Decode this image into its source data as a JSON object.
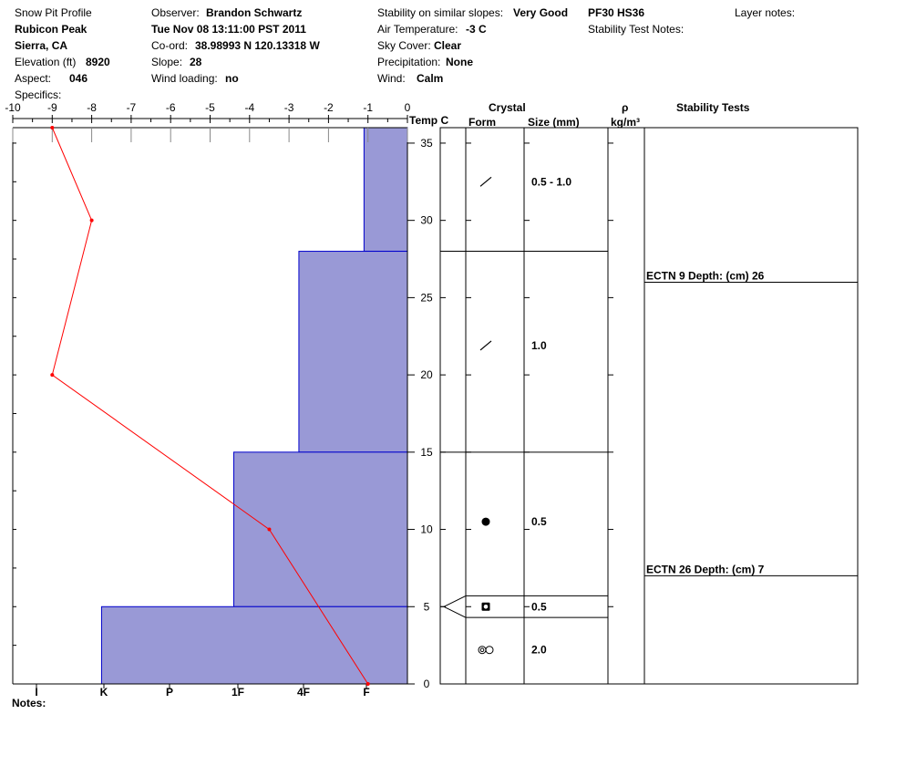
{
  "header": {
    "title": "Snow Pit Profile",
    "location": "Rubicon Peak",
    "region": "Sierra, CA",
    "elevation_label": "Elevation (ft)",
    "elevation_value": "8920",
    "aspect_label": "Aspect:",
    "aspect_value": "046",
    "specifics_label": "Specifics:",
    "observer_label": "Observer:",
    "observer_value": "Brandon Schwartz",
    "datetime": "Tue Nov 08 13:11:00 PST 2011",
    "coord_label": "Co-ord:",
    "coord_value": "38.98993 N 120.13318 W",
    "slope_label": "Slope:",
    "slope_value": "28",
    "wind_loading_label": "Wind loading:",
    "wind_loading_value": "no",
    "stability_label": "Stability on similar slopes:",
    "stability_value": "Very Good",
    "air_temp_label": "Air Temperature:",
    "air_temp_value": "-3 C",
    "sky_label": "Sky Cover:",
    "sky_value": "Clear",
    "precip_label": "Precipitation:",
    "precip_value": "None",
    "wind_label": "Wind:",
    "wind_value": "Calm",
    "pf_hs": "PF30 HS36",
    "layer_notes_label": "Layer notes:",
    "stability_notes_label": "Stability Test Notes:",
    "notes_label": "Notes:"
  },
  "columns": {
    "temp": "Temp C",
    "crystal": "Crystal",
    "form": "Form",
    "size": "Size (mm)",
    "rho": "ρ",
    "rho_unit": "kg/m³",
    "stability_tests": "Stability Tests"
  },
  "chart_data": {
    "type": "line",
    "temp_axis": {
      "ticks": [
        "-10",
        "-9",
        "-8",
        "-7",
        "-6",
        "-5",
        "-4",
        "-3",
        "-2",
        "-1",
        "0"
      ],
      "range": [
        -10,
        0
      ]
    },
    "depth_axis": {
      "ticks": [
        "0",
        "5",
        "10",
        "15",
        "20",
        "25",
        "30",
        "35"
      ],
      "range": [
        0,
        36
      ]
    },
    "hardness_axis": {
      "labels": [
        "I",
        "K",
        "P",
        "1F",
        "4F",
        "F"
      ]
    },
    "temperature_profile": [
      {
        "depth": 36,
        "temp": -9
      },
      {
        "depth": 30,
        "temp": -8
      },
      {
        "depth": 20,
        "temp": -9
      },
      {
        "depth": 10,
        "temp": -3.5
      },
      {
        "depth": 0,
        "temp": -1
      }
    ],
    "hardness_layers": [
      {
        "bottom": 28,
        "top": 36,
        "hardness_temp_equiv": -1.1
      },
      {
        "bottom": 15,
        "top": 28,
        "hardness_temp_equiv": -2.75
      },
      {
        "bottom": 5,
        "top": 15,
        "hardness_temp_equiv": -4.4
      },
      {
        "bottom": 0,
        "top": 5,
        "hardness_temp_equiv": -7.75
      }
    ],
    "layer_boundaries": [
      28,
      15,
      5.7,
      4.3
    ],
    "crystals": [
      {
        "depth": 32.5,
        "form": "precipitation-particles",
        "size": "0.5 - 1.0"
      },
      {
        "depth": 21.9,
        "form": "precipitation-particles",
        "size": "1.0"
      },
      {
        "depth": 10.5,
        "form": "rounded-grains",
        "size": "0.5"
      },
      {
        "depth": 5,
        "form": "faceted-rounded",
        "size": "0.5"
      },
      {
        "depth": 2.2,
        "form": "melt-forms",
        "size": "2.0"
      }
    ],
    "stability_tests": [
      {
        "depth": 26,
        "text": "ECTN 9   Depth: (cm) 26"
      },
      {
        "depth": 7,
        "text": "ECTN 26   Depth: (cm) 7"
      }
    ],
    "colors": {
      "hardness_fill": "#9999d6",
      "hardness_stroke": "#0000cc",
      "temp_line": "#ff0000"
    }
  }
}
